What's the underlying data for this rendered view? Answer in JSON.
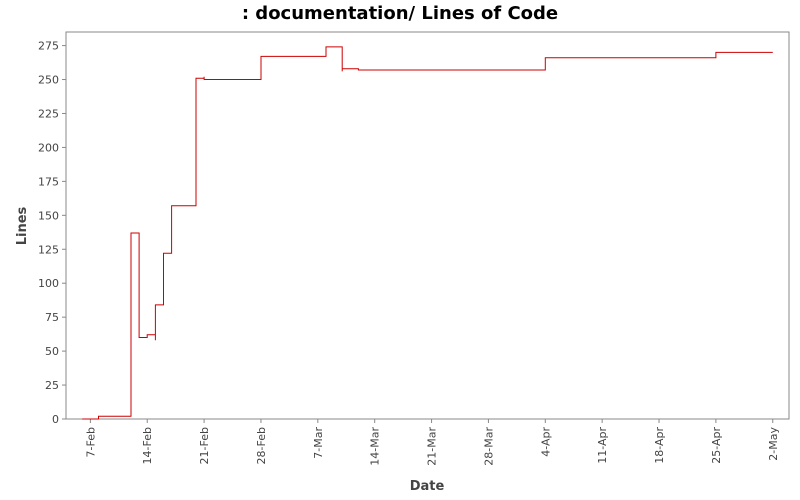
{
  "chart_data": {
    "type": "line",
    "title": ": documentation/ Lines of Code",
    "xlabel": "Date",
    "ylabel": "Lines",
    "ylim": [
      0,
      285
    ],
    "xlim": [
      "2009-02-04",
      "2009-05-04"
    ],
    "y_ticks": [
      0,
      25,
      50,
      75,
      100,
      125,
      150,
      175,
      200,
      225,
      250,
      275
    ],
    "x_ticks": [
      {
        "date": "2009-02-07",
        "label": "7-Feb"
      },
      {
        "date": "2009-02-14",
        "label": "14-Feb"
      },
      {
        "date": "2009-02-21",
        "label": "21-Feb"
      },
      {
        "date": "2009-02-28",
        "label": "28-Feb"
      },
      {
        "date": "2009-03-07",
        "label": "7-Mar"
      },
      {
        "date": "2009-03-14",
        "label": "14-Mar"
      },
      {
        "date": "2009-03-21",
        "label": "21-Mar"
      },
      {
        "date": "2009-03-28",
        "label": "28-Mar"
      },
      {
        "date": "2009-04-04",
        "label": "4-Apr"
      },
      {
        "date": "2009-04-11",
        "label": "11-Apr"
      },
      {
        "date": "2009-04-18",
        "label": "18-Apr"
      },
      {
        "date": "2009-04-25",
        "label": "25-Apr"
      },
      {
        "date": "2009-05-02",
        "label": "2-May"
      }
    ],
    "grid": false,
    "series": [
      {
        "color": "#cc0000",
        "step": true,
        "points": [
          [
            "2009-02-06",
            0
          ],
          [
            "2009-02-08",
            2
          ],
          [
            "2009-02-12",
            35
          ],
          [
            "2009-02-12",
            65
          ],
          [
            "2009-02-12",
            137
          ],
          [
            "2009-02-13",
            60
          ],
          [
            "2009-02-14",
            62
          ],
          [
            "2009-02-15",
            58
          ],
          [
            "2009-02-15",
            84
          ],
          [
            "2009-02-16",
            122
          ],
          [
            "2009-02-17",
            157
          ],
          [
            "2009-02-20",
            160
          ],
          [
            "2009-02-20",
            251
          ],
          [
            "2009-02-21",
            252
          ],
          [
            "2009-02-21",
            250
          ],
          [
            "2009-02-27",
            250
          ],
          [
            "2009-02-28",
            267
          ],
          [
            "2009-03-08",
            274
          ],
          [
            "2009-03-10",
            256
          ],
          [
            "2009-03-10",
            258
          ],
          [
            "2009-03-12",
            257
          ],
          [
            "2009-04-04",
            266
          ],
          [
            "2009-04-25",
            270
          ],
          [
            "2009-05-02",
            270
          ]
        ]
      }
    ]
  }
}
